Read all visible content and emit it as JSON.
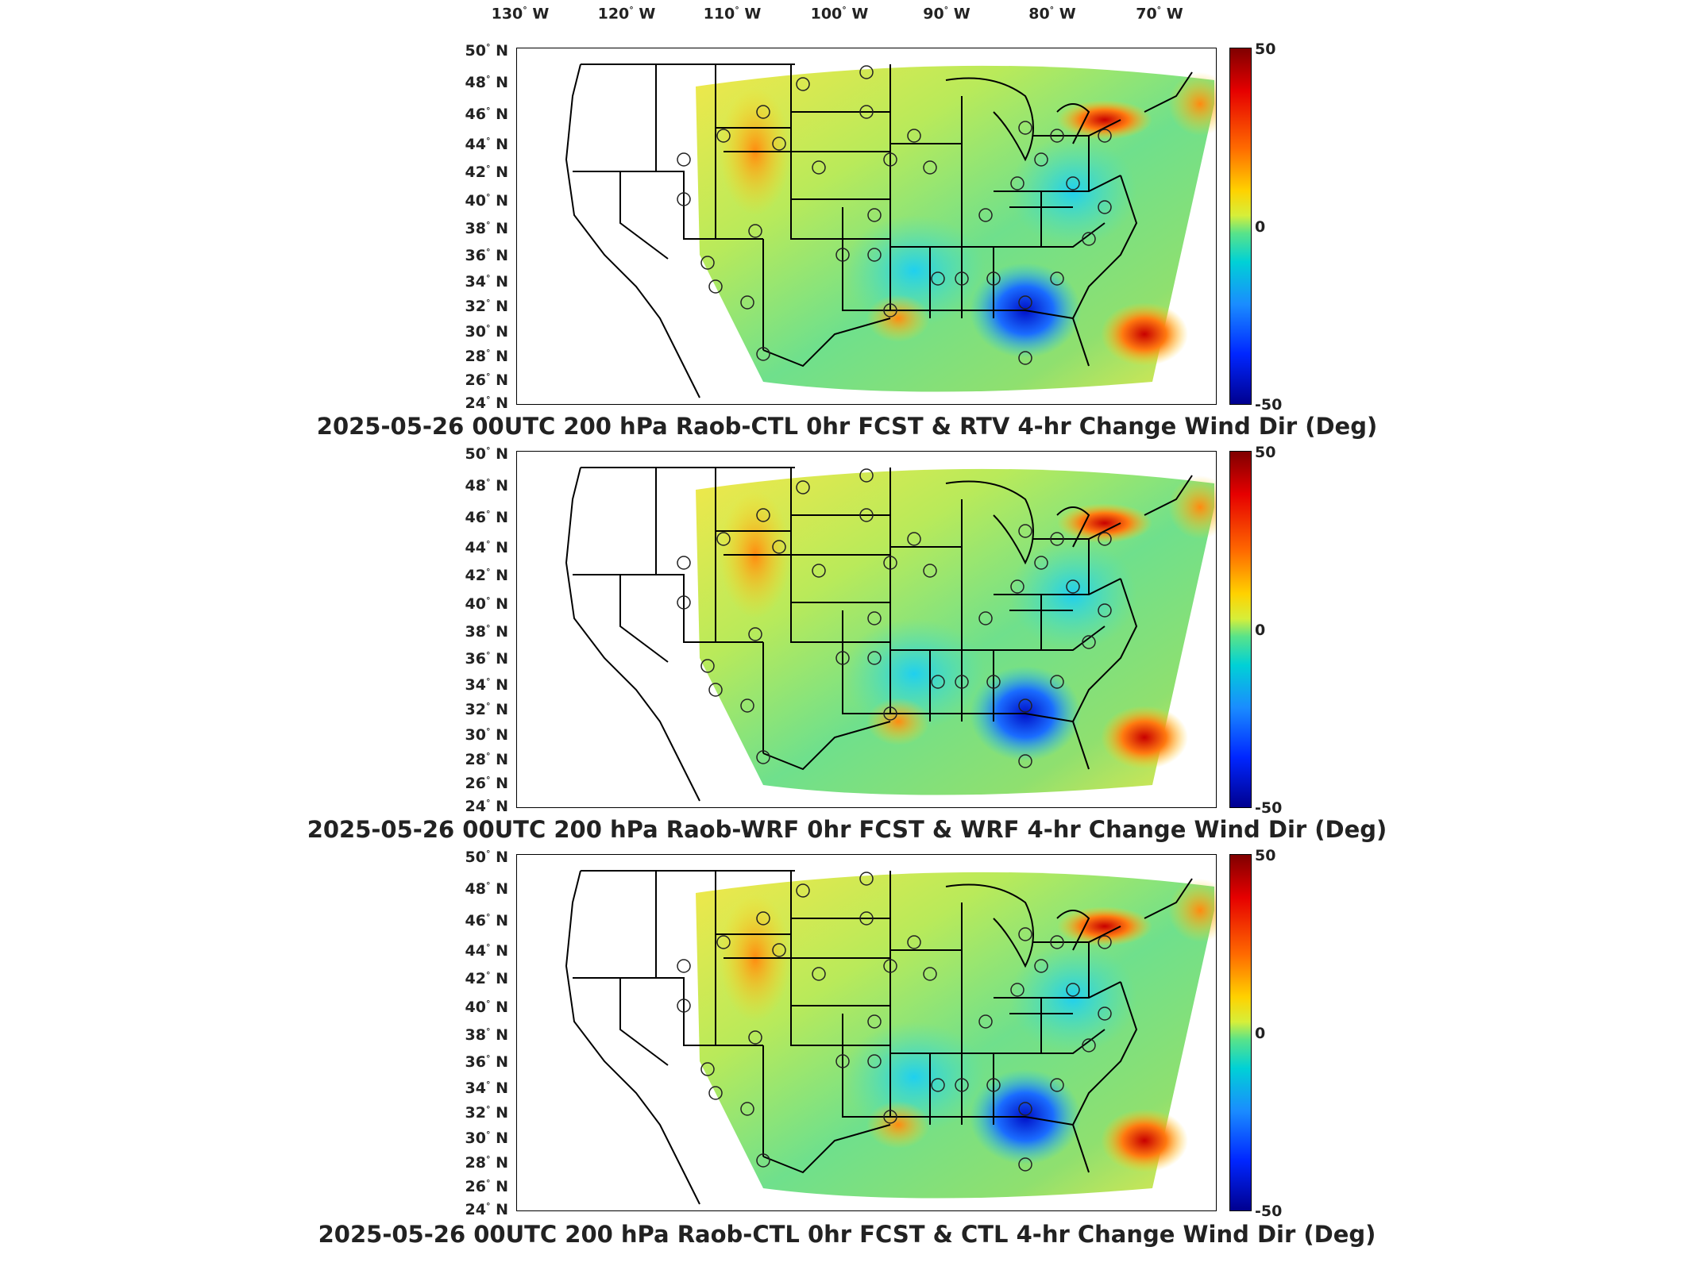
{
  "lon_labels": [
    "130",
    "120",
    "110",
    "100",
    "90",
    "80",
    "70"
  ],
  "lon_suffix": "W",
  "lat_labels": [
    "50",
    "48",
    "46",
    "44",
    "42",
    "40",
    "38",
    "36",
    "34",
    "32",
    "30",
    "28",
    "26",
    "24"
  ],
  "lat_suffix": "N",
  "degree_symbol": "°",
  "colorbar": {
    "max": "50",
    "mid": "0",
    "min": "-50"
  },
  "panels": [
    {
      "title": "2025-05-26 00UTC 200 hPa Raob-CTL 0hr FCST & RTV 4-hr Change Wind Dir (Deg)"
    },
    {
      "title": "2025-05-26 00UTC 200 hPa Raob-WRF 0hr FCST & WRF 4-hr Change Wind Dir (Deg)"
    },
    {
      "title": "2025-05-26 00UTC 200 hPa Raob-CTL 0hr FCST & CTL 4-hr Change Wind Dir (Deg)"
    }
  ],
  "colors": {
    "background_field": "#8ee07a",
    "positive_max": "#800000",
    "negative_max": "#00008f",
    "neutral": "#58e38a"
  }
}
